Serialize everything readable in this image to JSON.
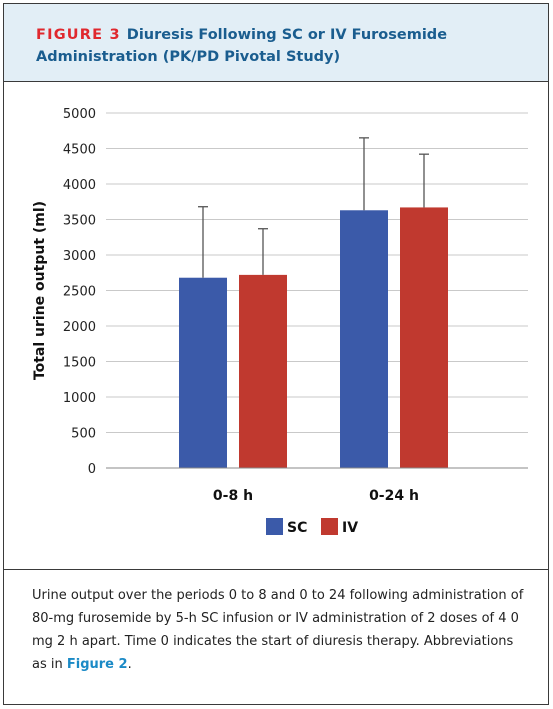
{
  "figure": {
    "label": "FIGURE 3",
    "title": "Diuresis Following SC or IV Furosemide Administration (PK/PD Pivotal Study)"
  },
  "caption": {
    "text": "Urine output over the periods 0 to 8 and 0 to 24 following administration of 80-mg furosemide by 5-h SC infusion or IV administration of 2 doses of 4 0 mg 2 h apart. Time 0 indicates the start of diuresis therapy. Abbreviations as in ",
    "ref": "Figure 2",
    "end": "."
  },
  "chart_data": {
    "type": "bar",
    "title": "",
    "xlabel": "",
    "ylabel": "Total urine output (ml)",
    "ylim": [
      0,
      5000
    ],
    "yticks": [
      0,
      500,
      1000,
      1500,
      2000,
      2500,
      3000,
      3500,
      4000,
      4500,
      5000
    ],
    "grid": true,
    "legend_position": "bottom-center",
    "categories": [
      "0-8 h",
      "0-24 h"
    ],
    "series": [
      {
        "name": "SC",
        "color": "#3b5aa9",
        "values": [
          2680,
          3630
        ],
        "error_upper": [
          3680,
          4650
        ]
      },
      {
        "name": "IV",
        "color": "#c0392f",
        "values": [
          2720,
          3670
        ],
        "error_upper": [
          3370,
          4420
        ]
      }
    ]
  }
}
